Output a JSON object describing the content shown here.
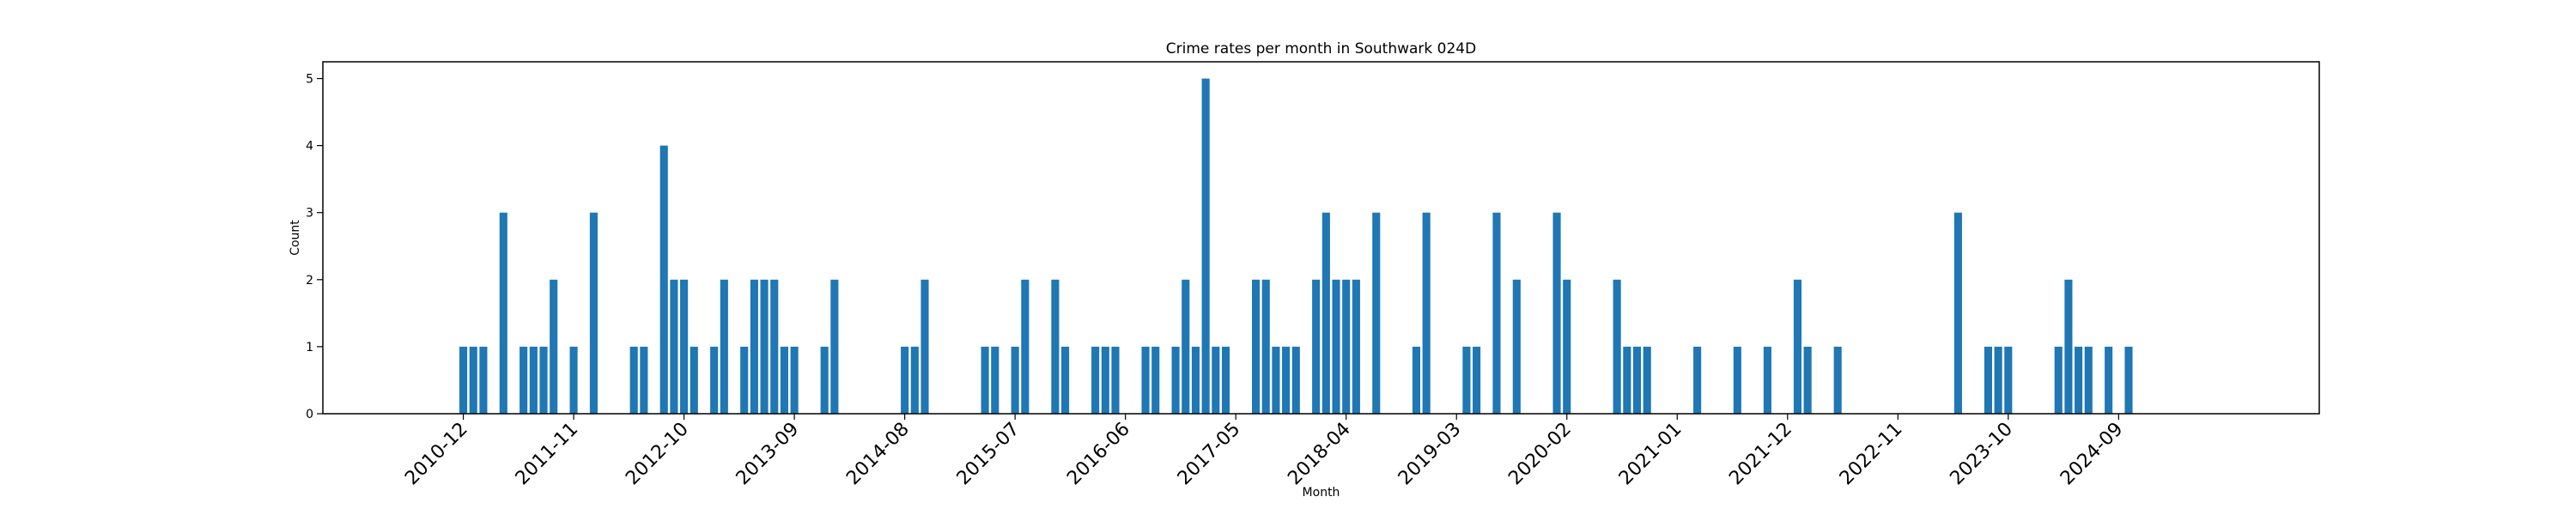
{
  "chart_data": {
    "type": "bar",
    "title": "Crime rates per month in Southwark 024D",
    "xlabel": "Month",
    "ylabel": "Count",
    "ylim": [
      0,
      5.25
    ],
    "yticks": [
      0,
      1,
      2,
      3,
      4,
      5
    ],
    "xlim": [
      "2009-10",
      "2026-05"
    ],
    "xticks": [
      "2010-12",
      "2011-11",
      "2012-10",
      "2013-09",
      "2014-08",
      "2015-07",
      "2016-06",
      "2017-05",
      "2018-04",
      "2019-03",
      "2020-02",
      "2021-01",
      "2021-12",
      "2022-11",
      "2023-10",
      "2024-09"
    ],
    "color": "#1f77b4",
    "grid": false,
    "months": [
      "2010-12",
      "2011-01",
      "2011-02",
      "2011-04",
      "2011-06",
      "2011-07",
      "2011-08",
      "2011-09",
      "2011-11",
      "2012-01",
      "2012-05",
      "2012-06",
      "2012-08",
      "2012-09",
      "2012-10",
      "2012-11",
      "2013-01",
      "2013-02",
      "2013-04",
      "2013-05",
      "2013-06",
      "2013-07",
      "2013-08",
      "2013-09",
      "2013-12",
      "2014-01",
      "2014-08",
      "2014-09",
      "2014-10",
      "2015-04",
      "2015-05",
      "2015-07",
      "2015-08",
      "2015-11",
      "2015-12",
      "2016-03",
      "2016-04",
      "2016-05",
      "2016-08",
      "2016-09",
      "2016-11",
      "2016-12",
      "2017-01",
      "2017-02",
      "2017-03",
      "2017-04",
      "2017-07",
      "2017-08",
      "2017-09",
      "2017-10",
      "2017-11",
      "2018-01",
      "2018-02",
      "2018-03",
      "2018-04",
      "2018-05",
      "2018-07",
      "2018-11",
      "2018-12",
      "2019-04",
      "2019-05",
      "2019-07",
      "2019-09",
      "2020-01",
      "2020-02",
      "2020-07",
      "2020-08",
      "2020-09",
      "2020-10",
      "2021-03",
      "2021-07",
      "2021-10",
      "2022-01",
      "2022-02",
      "2022-05",
      "2023-05",
      "2023-08",
      "2023-09",
      "2023-10",
      "2024-03",
      "2024-04",
      "2024-05",
      "2024-06",
      "2024-08",
      "2024-10"
    ],
    "values": [
      1,
      1,
      1,
      3,
      1,
      1,
      1,
      2,
      1,
      3,
      1,
      1,
      4,
      2,
      2,
      1,
      1,
      2,
      1,
      2,
      2,
      2,
      1,
      1,
      1,
      2,
      1,
      1,
      2,
      1,
      1,
      1,
      2,
      2,
      1,
      1,
      1,
      1,
      1,
      1,
      1,
      2,
      1,
      5,
      1,
      1,
      2,
      2,
      1,
      1,
      1,
      2,
      3,
      2,
      2,
      2,
      3,
      1,
      3,
      1,
      1,
      3,
      2,
      3,
      2,
      2,
      1,
      1,
      1,
      1,
      1,
      1,
      2,
      1,
      1,
      3,
      1,
      1,
      1,
      1,
      2,
      1,
      1,
      1,
      1
    ]
  }
}
